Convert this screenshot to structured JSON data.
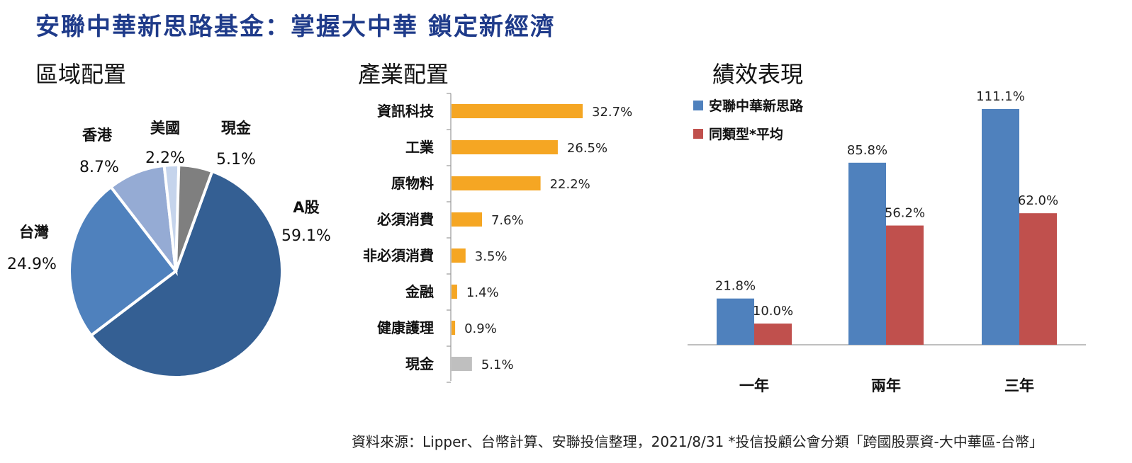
{
  "title": "安聯中華新思路基金：掌握大中華  鎖定新經濟",
  "sections": {
    "region": "區域配置",
    "industry": "產業配置",
    "performance": "績效表現"
  },
  "source": "資料來源：Lipper、台幣計算、安聯投信整理，2021/8/31  *投信投顧公會分類「跨國股票資-大中華區-台幣」",
  "colors": {
    "title": "#1f3b8a",
    "a_share": "#345f93",
    "taiwan": "#4f81bd",
    "hongkong": "#95abd4",
    "usa": "#c5d4ec",
    "cash_pie": "#7f7f7f",
    "industry_bar": "#f5a623",
    "cash_bar": "#bfbfbf",
    "fund": "#4f81bd",
    "peer": "#c0504d"
  },
  "chart_data": [
    {
      "type": "pie",
      "title": "區域配置",
      "slices": [
        {
          "label": "A股",
          "value": 59.1,
          "value_label": "59.1%"
        },
        {
          "label": "台灣",
          "value": 24.9,
          "value_label": "24.9%"
        },
        {
          "label": "香港",
          "value": 8.7,
          "value_label": "8.7%"
        },
        {
          "label": "美國",
          "value": 2.2,
          "value_label": "2.2%"
        },
        {
          "label": "現金",
          "value": 5.1,
          "value_label": "5.1%"
        }
      ]
    },
    {
      "type": "bar",
      "orientation": "horizontal",
      "title": "產業配置",
      "categories": [
        "資訊科技",
        "工業",
        "原物料",
        "必須消費",
        "非必須消費",
        "金融",
        "健康護理",
        "現金"
      ],
      "values": [
        32.7,
        26.5,
        22.2,
        7.6,
        3.5,
        1.4,
        0.9,
        5.1
      ],
      "value_labels": [
        "32.7%",
        "26.5%",
        "22.2%",
        "7.6%",
        "3.5%",
        "1.4%",
        "0.9%",
        "5.1%"
      ]
    },
    {
      "type": "bar",
      "title": "績效表現",
      "categories": [
        "一年",
        "兩年",
        "三年"
      ],
      "series": [
        {
          "name": "安聯中華新思路",
          "values": [
            21.8,
            85.8,
            111.1
          ],
          "value_labels": [
            "21.8%",
            "85.8%",
            "111.1%"
          ]
        },
        {
          "name": "同類型*平均",
          "values": [
            10.0,
            56.2,
            62.0
          ],
          "value_labels": [
            "10.0%",
            "56.2%",
            "62.0%"
          ]
        }
      ],
      "legend": "top-left"
    }
  ]
}
